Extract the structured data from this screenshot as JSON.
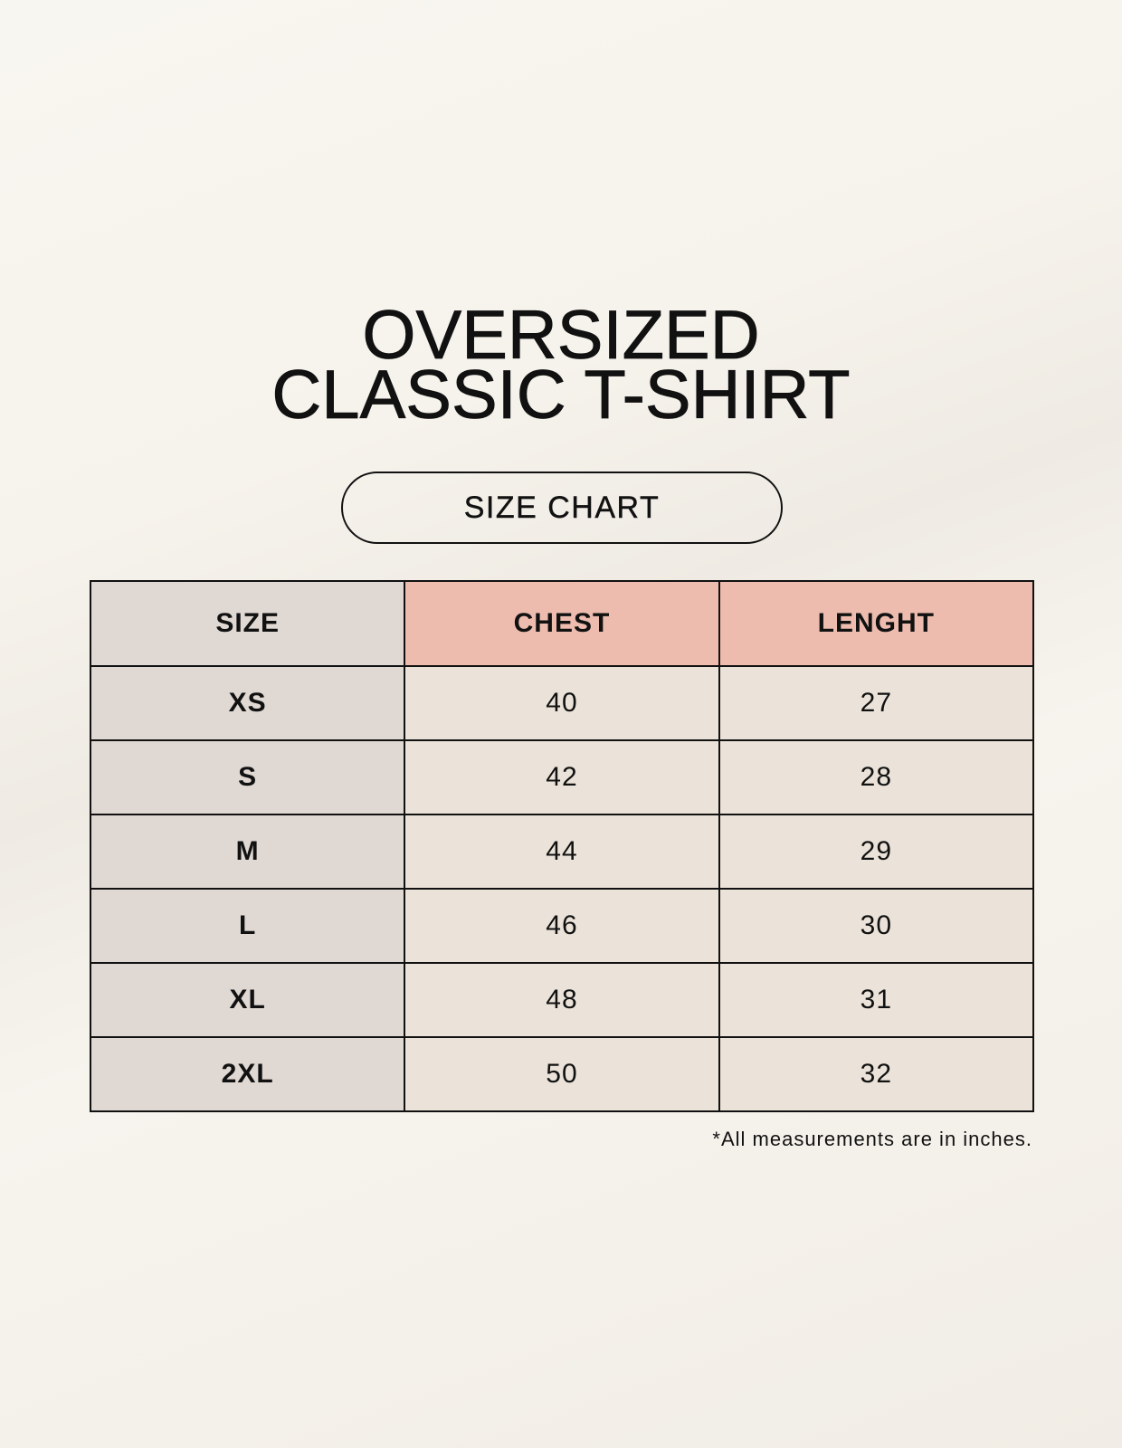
{
  "title": {
    "line1": "OVERSIZED",
    "line2": "CLASSIC T-SHIRT"
  },
  "badge": "SIZE CHART",
  "table": {
    "headers": [
      "SIZE",
      "CHEST",
      "LENGHT"
    ],
    "rows": [
      [
        "XS",
        "40",
        "27"
      ],
      [
        "S",
        "42",
        "28"
      ],
      [
        "M",
        "44",
        "29"
      ],
      [
        "L",
        "46",
        "30"
      ],
      [
        "XL",
        "48",
        "31"
      ],
      [
        "2XL",
        "50",
        "32"
      ]
    ]
  },
  "footnote": "*All measurements are in inches.",
  "colors": {
    "size_column": "#e0d8d3",
    "header_accent": "#edbcae",
    "cell": "#ebe3d9",
    "background": "#f8f6f0"
  }
}
